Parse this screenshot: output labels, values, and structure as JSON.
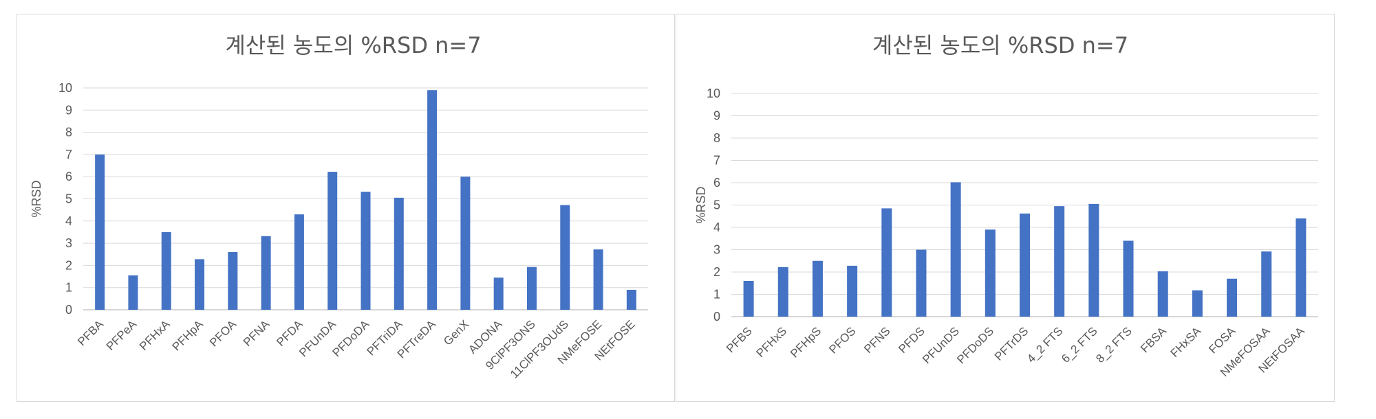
{
  "chart_data": [
    {
      "type": "bar",
      "title": "계산된 농도의 %RSD n=7",
      "xlabel": "",
      "ylabel": "%RSD",
      "ylim": [
        0,
        10
      ],
      "yticks": [
        "0",
        "1",
        "2",
        "3",
        "4",
        "5",
        "6",
        "7",
        "8",
        "9",
        "10"
      ],
      "grid": true,
      "color": "#4472c4",
      "categories": [
        "PFBA",
        "PFPeA",
        "PFHxA",
        "PFHpA",
        "PFOA",
        "PFNA",
        "PFDA",
        "PFUnDA",
        "PFDoDA",
        "PFTriDA",
        "PFTreDA",
        "GenX",
        "ADONA",
        "9ClPF3ONS",
        "11ClPF3OUdS",
        "NMeFOSE",
        "NEtFOSE"
      ],
      "values": [
        7.0,
        1.55,
        3.5,
        2.28,
        2.6,
        3.32,
        4.3,
        6.22,
        5.32,
        5.05,
        9.9,
        6.0,
        1.45,
        1.93,
        4.72,
        2.72,
        0.9
      ]
    },
    {
      "type": "bar",
      "title": "계산된 농도의 %RSD n=7",
      "xlabel": "",
      "ylabel": "%RSD",
      "ylim": [
        0,
        10
      ],
      "yticks": [
        "0",
        "1",
        "2",
        "3",
        "4",
        "5",
        "6",
        "7",
        "8",
        "9",
        "10"
      ],
      "grid": true,
      "color": "#4472c4",
      "categories": [
        "PFBS",
        "PFHxS",
        "PFHpS",
        "PFOS",
        "PFNS",
        "PFDS",
        "PFUnDS",
        "PFDoDS",
        "PFTrDS",
        "4_2 FTS",
        "6_2 FTS",
        "8_2 FTS",
        "FBSA",
        "FHxSA",
        "FOSA",
        "NMeFOSAA",
        "NEtFOSAA"
      ],
      "values": [
        1.6,
        2.22,
        2.5,
        2.28,
        4.85,
        3.0,
        6.02,
        3.9,
        4.62,
        4.95,
        5.05,
        3.4,
        2.03,
        1.18,
        1.7,
        2.92,
        4.4
      ]
    }
  ]
}
